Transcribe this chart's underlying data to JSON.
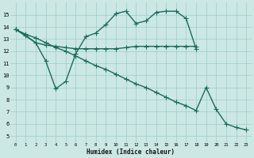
{
  "xlabel": "Humidex (Indice chaleur)",
  "bg_color": "#cce8e4",
  "grid_color": "#99cccc",
  "line_color": "#1a6b5a",
  "line_width": 1.0,
  "marker": "+",
  "marker_size": 4,
  "marker_edge_width": 0.8,
  "xlim": [
    -0.5,
    23.5
  ],
  "ylim": [
    4.5,
    16.0
  ],
  "yticks": [
    5,
    6,
    7,
    8,
    9,
    10,
    11,
    12,
    13,
    14,
    15
  ],
  "xticks": [
    0,
    1,
    2,
    3,
    4,
    5,
    6,
    7,
    8,
    9,
    10,
    11,
    12,
    13,
    14,
    15,
    16,
    17,
    18,
    19,
    20,
    21,
    22,
    23
  ],
  "series": [
    {
      "x": [
        0,
        1,
        2,
        3,
        4,
        5,
        6,
        7,
        8,
        9,
        10,
        11,
        12,
        13,
        14,
        15,
        16,
        17,
        18
      ],
      "y": [
        13.8,
        13.3,
        12.7,
        11.2,
        8.9,
        9.5,
        11.8,
        13.2,
        13.5,
        14.2,
        15.1,
        15.3,
        14.3,
        14.5,
        15.2,
        15.3,
        15.3,
        14.7,
        12.2
      ]
    },
    {
      "x": [
        0,
        2,
        3,
        4,
        5,
        6,
        7,
        8,
        9,
        10,
        11,
        12,
        13,
        14,
        15,
        16,
        17,
        18
      ],
      "y": [
        13.8,
        12.7,
        12.5,
        12.4,
        12.3,
        12.2,
        12.2,
        12.2,
        12.2,
        12.2,
        12.3,
        12.4,
        12.4,
        12.4,
        12.4,
        12.4,
        12.4,
        12.4
      ]
    },
    {
      "x": [
        0,
        1,
        2,
        3,
        4,
        5,
        6,
        7,
        8,
        9,
        10,
        11,
        12,
        13,
        14,
        15,
        16,
        17,
        18,
        19,
        20,
        21,
        22,
        23
      ],
      "y": [
        13.8,
        13.4,
        13.1,
        12.7,
        12.3,
        12.0,
        11.6,
        11.2,
        10.8,
        10.5,
        10.1,
        9.7,
        9.3,
        9.0,
        8.6,
        8.2,
        7.8,
        7.5,
        7.1,
        9.0,
        7.2,
        6.0,
        5.7,
        5.5
      ]
    }
  ]
}
